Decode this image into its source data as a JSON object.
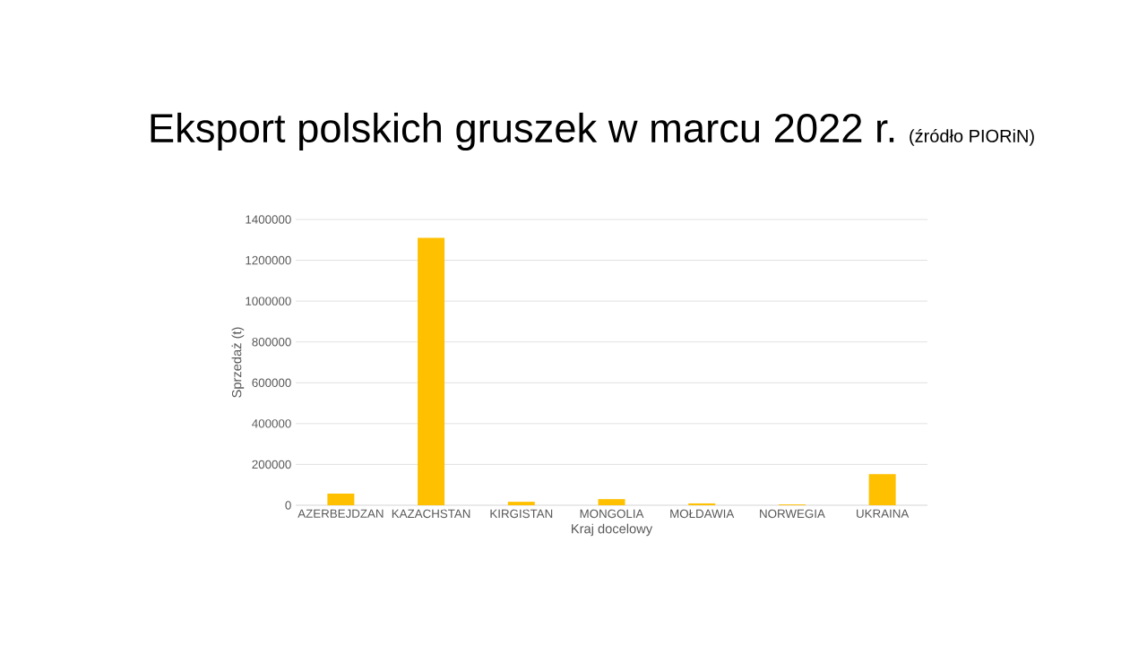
{
  "chart_data": {
    "type": "bar",
    "title": "Eksport polskich gruszek w marcu 2022 r.",
    "annotations": [
      "(źródło PIORiN)"
    ],
    "xlabel": "Kraj docelowy",
    "ylabel": "Sprzedaż (t)",
    "categories": [
      "AZERBEJDZAN",
      "KAZACHSTAN",
      "KIRGISTAN",
      "MONGOLIA",
      "MOŁDAWIA",
      "NORWEGIA",
      "UKRAINA"
    ],
    "values": [
      57000,
      1310000,
      17000,
      30000,
      9000,
      4000,
      152000
    ],
    "color": "#ffc000",
    "ylim": [
      0,
      1400000
    ],
    "yticks": [
      0,
      200000,
      400000,
      600000,
      800000,
      1000000,
      1200000,
      1400000
    ],
    "grid": "y"
  }
}
